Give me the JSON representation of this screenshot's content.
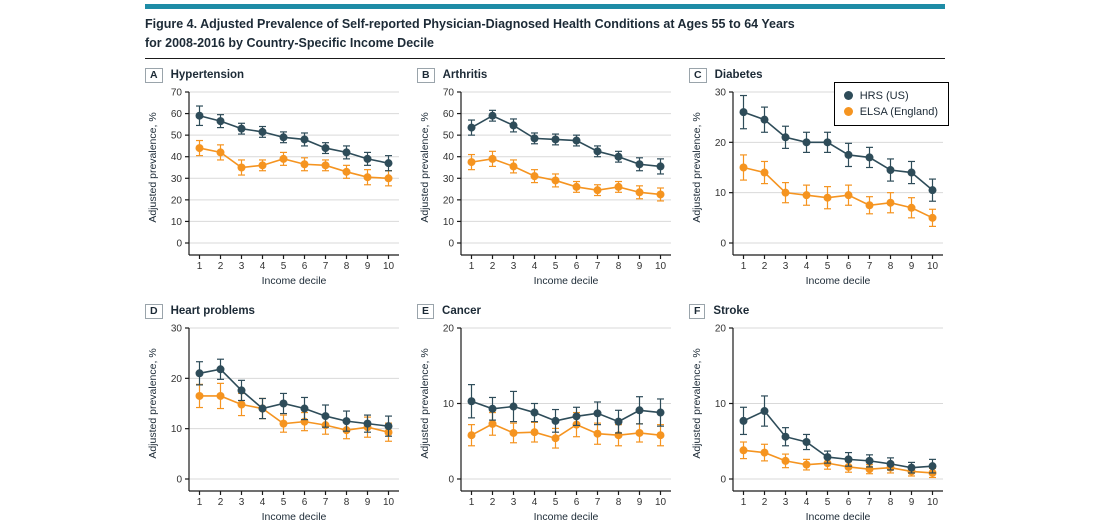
{
  "figure": {
    "title_line1": "Figure 4. Adjusted Prevalence of Self-reported Physician-Diagnosed Health Conditions at Ages 55 to 64 Years",
    "title_line2": "for 2008-2016 by Country-Specific Income Decile"
  },
  "colors": {
    "accent_bar": "#1e8ca6",
    "hrs": "#2e4c59",
    "elsa": "#f59420",
    "grid": "#d9d9d9",
    "axis": "#1a1a1a",
    "text": "#1c2a36"
  },
  "legend": {
    "items": [
      {
        "label": "HRS (US)",
        "color": "#2e4c59"
      },
      {
        "label": "ELSA (England)",
        "color": "#f59420"
      }
    ]
  },
  "chart_data": [
    {
      "type": "line",
      "panel_letter": "A",
      "title": "Hypertension",
      "xlabel": "Income decile",
      "ylabel": "Adjusted prevalence, %",
      "x": [
        1,
        2,
        3,
        4,
        5,
        6,
        7,
        8,
        9,
        10
      ],
      "ylim": [
        0,
        70
      ],
      "yticks": [
        0,
        10,
        20,
        30,
        40,
        50,
        60,
        70
      ],
      "grid": true,
      "series": [
        {
          "name": "HRS (US)",
          "color": "#2e4c59",
          "values": [
            59,
            56.5,
            53,
            51.5,
            49,
            48,
            44,
            42,
            39,
            37
          ],
          "errors": [
            4.5,
            3,
            2.5,
            2.5,
            2.5,
            3,
            2.5,
            3,
            3,
            3.5
          ]
        },
        {
          "name": "ELSA (England)",
          "color": "#f59420",
          "values": [
            44,
            42,
            35,
            36,
            39,
            36.5,
            36,
            33,
            30.5,
            30
          ],
          "errors": [
            3.5,
            3.5,
            3.5,
            2.5,
            3,
            3,
            2.5,
            3,
            3.5,
            3.5
          ]
        }
      ]
    },
    {
      "type": "line",
      "panel_letter": "B",
      "title": "Arthritis",
      "xlabel": "Income decile",
      "ylabel": "Adjusted prevalence, %",
      "x": [
        1,
        2,
        3,
        4,
        5,
        6,
        7,
        8,
        9,
        10
      ],
      "ylim": [
        0,
        70
      ],
      "yticks": [
        0,
        10,
        20,
        30,
        40,
        50,
        60,
        70
      ],
      "grid": true,
      "series": [
        {
          "name": "HRS (US)",
          "color": "#2e4c59",
          "values": [
            53.5,
            59,
            54.5,
            48.5,
            48,
            47.5,
            42.5,
            40,
            36.5,
            35.5
          ],
          "errors": [
            3.5,
            2.5,
            3,
            2.5,
            2.5,
            2.5,
            2.5,
            2.5,
            3,
            3.5
          ]
        },
        {
          "name": "ELSA (England)",
          "color": "#f59420",
          "values": [
            37.5,
            39,
            35.5,
            31,
            29,
            26,
            24.5,
            26,
            23.5,
            22.5
          ],
          "errors": [
            3.5,
            3.5,
            3,
            3,
            3,
            2.5,
            2.5,
            2.5,
            3,
            3
          ]
        }
      ]
    },
    {
      "type": "line",
      "panel_letter": "C",
      "title": "Diabetes",
      "xlabel": "Income decile",
      "ylabel": "Adjusted prevalence, %",
      "x": [
        1,
        2,
        3,
        4,
        5,
        6,
        7,
        8,
        9,
        10
      ],
      "ylim": [
        0,
        30
      ],
      "yticks": [
        0,
        10,
        20,
        30
      ],
      "grid": true,
      "legend_position": "top-right",
      "series": [
        {
          "name": "HRS (US)",
          "color": "#2e4c59",
          "values": [
            26,
            24.5,
            21,
            20,
            20,
            17.5,
            17,
            14.5,
            14,
            10.5
          ],
          "errors": [
            3.3,
            2.5,
            2.2,
            2,
            2,
            2.3,
            2,
            2.2,
            2.2,
            2.2
          ]
        },
        {
          "name": "ELSA (England)",
          "color": "#f59420",
          "values": [
            15,
            14,
            10,
            9.5,
            9,
            9.5,
            7.5,
            8,
            7,
            5
          ],
          "errors": [
            2.5,
            2.2,
            2,
            2,
            2.2,
            2,
            1.7,
            2,
            2,
            1.7
          ]
        }
      ]
    },
    {
      "type": "line",
      "panel_letter": "D",
      "title": "Heart problems",
      "xlabel": "Income decile",
      "ylabel": "Adjusted prevalence, %",
      "x": [
        1,
        2,
        3,
        4,
        5,
        6,
        7,
        8,
        9,
        10
      ],
      "ylim": [
        0,
        30
      ],
      "yticks": [
        0,
        10,
        20,
        30
      ],
      "grid": true,
      "series": [
        {
          "name": "HRS (US)",
          "color": "#2e4c59",
          "values": [
            21,
            21.8,
            17.6,
            14,
            15,
            14,
            12.5,
            11.5,
            11,
            10.5
          ],
          "errors": [
            2.3,
            2,
            2,
            2,
            2,
            2.2,
            2.2,
            2,
            1.7,
            2
          ]
        },
        {
          "name": "ELSA (England)",
          "color": "#f59420",
          "values": [
            16.5,
            16.5,
            14.8,
            14,
            11,
            11.4,
            10.7,
            9.7,
            10.3,
            9.3
          ],
          "errors": [
            2.3,
            2.5,
            2.2,
            2,
            1.7,
            1.8,
            1.8,
            1.7,
            2,
            1.8
          ]
        }
      ]
    },
    {
      "type": "line",
      "panel_letter": "E",
      "title": "Cancer",
      "xlabel": "Income decile",
      "ylabel": "Adjusted prevalence, %",
      "x": [
        1,
        2,
        3,
        4,
        5,
        6,
        7,
        8,
        9,
        10
      ],
      "ylim": [
        0,
        20
      ],
      "yticks": [
        0,
        10,
        20
      ],
      "grid": true,
      "series": [
        {
          "name": "HRS (US)",
          "color": "#2e4c59",
          "values": [
            10.3,
            9.3,
            9.6,
            8.8,
            7.7,
            8.3,
            8.7,
            7.6,
            9.1,
            8.8
          ],
          "errors": [
            2.2,
            1.5,
            2,
            1.2,
            1.5,
            1.2,
            1.5,
            1.5,
            1.8,
            1.8
          ]
        },
        {
          "name": "ELSA (England)",
          "color": "#f59420",
          "values": [
            5.8,
            7.3,
            6.1,
            6.2,
            5.4,
            7.2,
            6,
            5.8,
            6.1,
            5.8
          ],
          "errors": [
            1.4,
            1.5,
            1.3,
            1.3,
            1.3,
            1.6,
            1.4,
            1.4,
            1.2,
            1.4
          ]
        }
      ]
    },
    {
      "type": "line",
      "panel_letter": "F",
      "title": "Stroke",
      "xlabel": "Income decile",
      "ylabel": "Adjusted prevalence, %",
      "x": [
        1,
        2,
        3,
        4,
        5,
        6,
        7,
        8,
        9,
        10
      ],
      "ylim": [
        0,
        20
      ],
      "yticks": [
        0,
        10,
        20
      ],
      "grid": true,
      "series": [
        {
          "name": "HRS (US)",
          "color": "#2e4c59",
          "values": [
            7.7,
            9,
            5.6,
            4.9,
            2.9,
            2.6,
            2.4,
            2,
            1.5,
            1.7
          ],
          "errors": [
            1.8,
            2,
            1.2,
            1,
            0.8,
            0.9,
            0.8,
            0.8,
            0.7,
            0.9
          ]
        },
        {
          "name": "ELSA (England)",
          "color": "#f59420",
          "values": [
            3.8,
            3.5,
            2.4,
            1.9,
            2.1,
            1.6,
            1.3,
            1.5,
            1,
            0.8
          ],
          "errors": [
            1.1,
            1.1,
            0.9,
            0.7,
            0.8,
            0.7,
            0.6,
            0.7,
            0.6,
            0.6
          ]
        }
      ]
    }
  ]
}
